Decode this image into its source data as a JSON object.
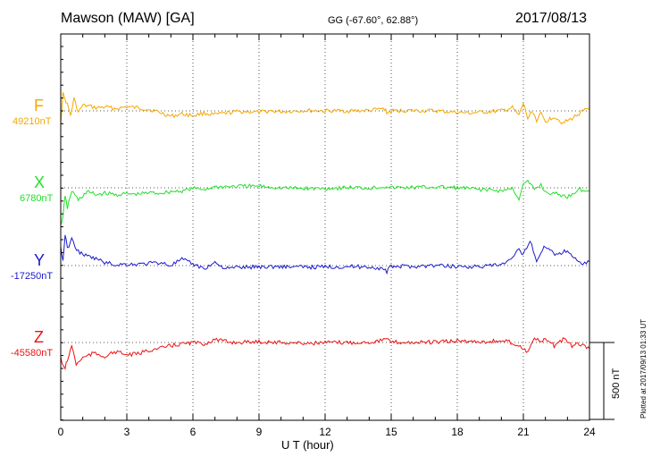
{
  "header": {
    "station": "Mawson (MAW)  [GA]",
    "coords": "GG (-67.60°,  62.88°)",
    "date": "2017/08/13"
  },
  "footer": {
    "xlabel": "U T (hour)",
    "plotted": "Plotted at 2017/09/13 01:33 UT",
    "scale": "500 nT"
  },
  "chart_data": {
    "type": "line",
    "xlabel": "U T (hour)",
    "xlim": [
      0,
      24
    ],
    "x_ticks": [
      "0",
      "3",
      "6",
      "9",
      "12",
      "15",
      "18",
      "21",
      "24"
    ],
    "scale_bar_nT": 500,
    "grid": "dotted, vertical every 3 h, horizontal at each baseline",
    "series": [
      {
        "name": "F",
        "baseline_label": "49210nT",
        "baseline": 49210,
        "color": "#f5a800",
        "x": [
          0,
          0.1,
          0.3,
          0.45,
          0.6,
          0.8,
          1.0,
          1.3,
          1.6,
          2.0,
          2.5,
          3.0,
          3.5,
          4.0,
          4.5,
          5.0,
          5.5,
          6.0,
          6.5,
          7.0,
          7.5,
          8.0,
          8.5,
          9.0,
          9.5,
          10.0,
          11.0,
          12.0,
          13.0,
          14.0,
          14.7,
          14.8,
          15.0,
          16.0,
          17.0,
          18.0,
          18.5,
          19.0,
          20.0,
          20.5,
          20.8,
          21.0,
          21.2,
          21.4,
          21.6,
          21.8,
          22.0,
          22.4,
          22.8,
          23.2,
          23.6,
          24.0
        ],
        "y": [
          49130,
          49320,
          49250,
          49180,
          49290,
          49200,
          49245,
          49240,
          49230,
          49235,
          49225,
          49235,
          49230,
          49220,
          49200,
          49175,
          49190,
          49180,
          49195,
          49185,
          49195,
          49205,
          49205,
          49200,
          49210,
          49205,
          49212,
          49210,
          49210,
          49212,
          49225,
          49195,
          49210,
          49212,
          49210,
          49200,
          49195,
          49200,
          49210,
          49230,
          49180,
          49260,
          49160,
          49210,
          49150,
          49190,
          49140,
          49175,
          49130,
          49160,
          49200,
          49225
        ]
      },
      {
        "name": "X",
        "baseline_label": "6780nT",
        "baseline": 6780,
        "color": "#22e02a",
        "x": [
          0,
          0.1,
          0.2,
          0.3,
          0.5,
          0.8,
          1.2,
          1.6,
          2.0,
          2.5,
          3.0,
          3.5,
          4.0,
          4.5,
          5.0,
          5.5,
          6.0,
          6.5,
          7.0,
          8.0,
          9.0,
          10.0,
          11.0,
          12.0,
          13.0,
          14.0,
          14.8,
          15.0,
          16.0,
          17.0,
          18.0,
          19.0,
          20.0,
          20.5,
          20.8,
          21.0,
          21.2,
          21.5,
          21.8,
          22.0,
          22.5,
          23.0,
          23.5,
          24.0
        ],
        "y": [
          6530,
          6600,
          6720,
          6650,
          6760,
          6700,
          6755,
          6735,
          6745,
          6735,
          6740,
          6738,
          6748,
          6745,
          6755,
          6760,
          6775,
          6770,
          6785,
          6790,
          6790,
          6780,
          6775,
          6775,
          6782,
          6778,
          6790,
          6780,
          6782,
          6785,
          6780,
          6770,
          6760,
          6775,
          6710,
          6800,
          6820,
          6770,
          6800,
          6750,
          6740,
          6720,
          6770,
          6760
        ]
      },
      {
        "name": "Y",
        "baseline_label": "-17250nT",
        "baseline": -17250,
        "color": "#1a1acc",
        "x": [
          0,
          0.1,
          0.2,
          0.3,
          0.5,
          0.8,
          1.2,
          1.6,
          2.0,
          2.5,
          3.0,
          3.5,
          4.0,
          4.5,
          5.0,
          5.5,
          6.0,
          6.5,
          7.0,
          7.5,
          8.0,
          9.0,
          10.0,
          11.0,
          12.0,
          13.0,
          14.0,
          14.6,
          14.8,
          15.0,
          16.0,
          17.0,
          18.0,
          19.0,
          20.0,
          20.5,
          20.8,
          21.0,
          21.3,
          21.6,
          21.8,
          22.0,
          22.5,
          23.0,
          23.5,
          24.0
        ],
        "y": [
          -17130,
          -17220,
          -17050,
          -17140,
          -17080,
          -17160,
          -17190,
          -17205,
          -17230,
          -17245,
          -17240,
          -17242,
          -17235,
          -17230,
          -17248,
          -17210,
          -17240,
          -17270,
          -17230,
          -17270,
          -17262,
          -17258,
          -17256,
          -17260,
          -17258,
          -17256,
          -17258,
          -17270,
          -17290,
          -17255,
          -17255,
          -17250,
          -17255,
          -17258,
          -17245,
          -17210,
          -17140,
          -17180,
          -17080,
          -17220,
          -17170,
          -17120,
          -17180,
          -17150,
          -17230,
          -17225
        ]
      },
      {
        "name": "Z",
        "baseline_label": "-45580nT",
        "baseline": -45580,
        "color": "#ee1111",
        "x": [
          0,
          0.1,
          0.2,
          0.3,
          0.5,
          0.7,
          1.0,
          1.5,
          2.0,
          2.5,
          3.0,
          3.5,
          4.0,
          4.5,
          5.0,
          5.5,
          6.0,
          6.5,
          7.0,
          7.5,
          8.0,
          9.0,
          10.0,
          11.0,
          12.0,
          13.0,
          14.0,
          14.8,
          15.0,
          16.0,
          17.0,
          18.0,
          19.0,
          20.0,
          20.5,
          21.0,
          21.2,
          21.5,
          21.8,
          22.0,
          22.4,
          22.8,
          23.2,
          23.6,
          24.0
        ],
        "y": [
          -45670,
          -45740,
          -45740,
          -45700,
          -45600,
          -45720,
          -45680,
          -45650,
          -45670,
          -45640,
          -45660,
          -45655,
          -45630,
          -45620,
          -45600,
          -45590,
          -45580,
          -45590,
          -45560,
          -45575,
          -45580,
          -45575,
          -45580,
          -45585,
          -45582,
          -45580,
          -45578,
          -45560,
          -45578,
          -45580,
          -45578,
          -45570,
          -45575,
          -45570,
          -45580,
          -45620,
          -45640,
          -45550,
          -45580,
          -45560,
          -45600,
          -45560,
          -45600,
          -45590,
          -45620
        ]
      }
    ]
  }
}
